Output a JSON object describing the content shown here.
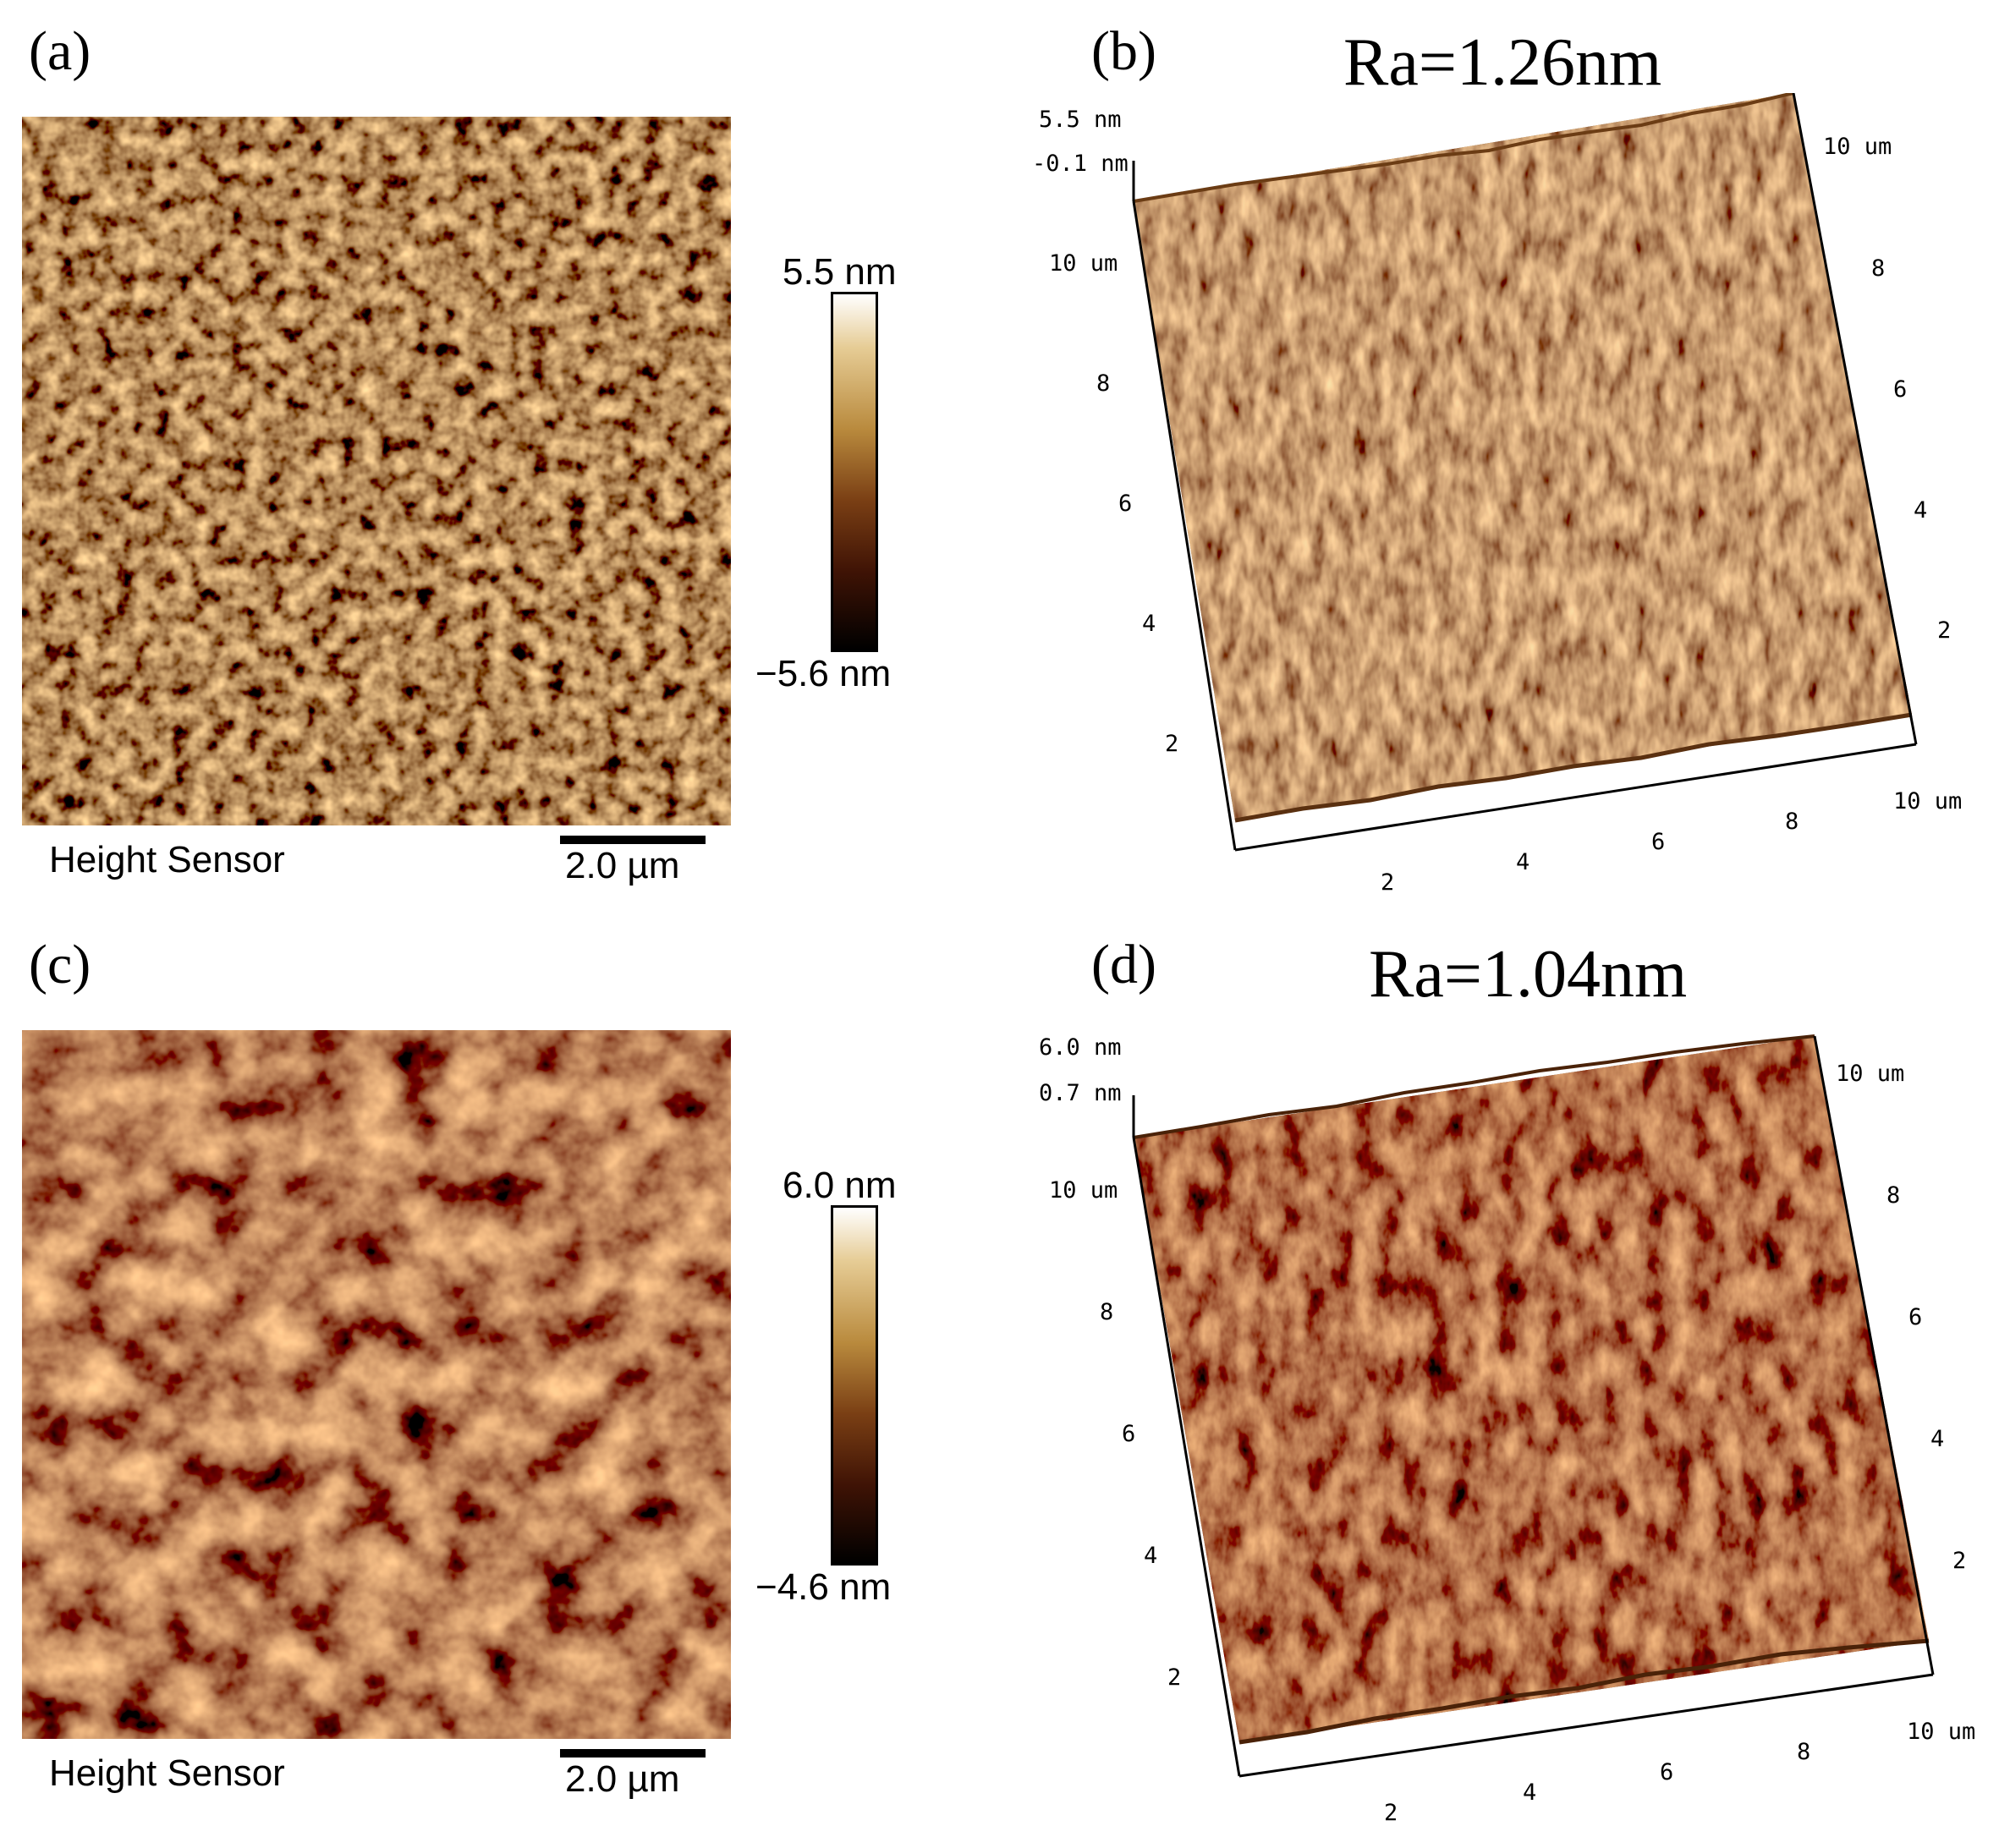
{
  "panels": {
    "a": {
      "label": "(a)",
      "colorbar_max": "5.5 nm",
      "colorbar_min": "−5.6 nm",
      "channel": "Height Sensor",
      "scalebar": "2.0 µm"
    },
    "b": {
      "label": "(b)",
      "title": "Ra=1.26nm",
      "z_max": "5.5 nm",
      "z_min": "-0.1 nm",
      "left_axis": [
        "10 um",
        "8",
        "6",
        "4",
        "2"
      ],
      "right_axis": [
        "10 um",
        "8",
        "6",
        "4",
        "2"
      ],
      "bottom_axis": [
        "2",
        "4",
        "6",
        "8",
        "10 um"
      ]
    },
    "c": {
      "label": "(c)",
      "colorbar_max": "6.0 nm",
      "colorbar_min": "−4.6 nm",
      "channel": "Height Sensor",
      "scalebar": "2.0 µm"
    },
    "d": {
      "label": "(d)",
      "title": "Ra=1.04nm",
      "z_max": "6.0 nm",
      "z_min": "0.7 nm",
      "left_axis": [
        "10 um",
        "8",
        "6",
        "4",
        "2"
      ],
      "right_axis": [
        "10 um",
        "8",
        "6",
        "4",
        "2"
      ],
      "bottom_axis": [
        "2",
        "4",
        "6",
        "8",
        "10 um"
      ]
    }
  },
  "colors": {
    "afm_dark": "#3a1706",
    "afm_mid": "#8a4a18",
    "afm_light": "#e8c27a",
    "surface_3d": "#9a6427"
  }
}
